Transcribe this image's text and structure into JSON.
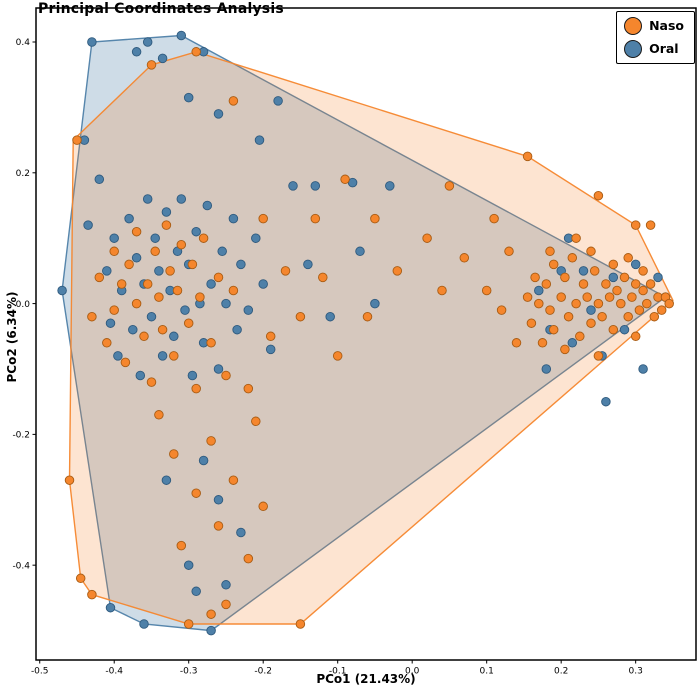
{
  "chart_data": {
    "type": "scatter",
    "title": "Principal Coordinates Analysis",
    "xlabel": "PCo1 (21.43%)",
    "ylabel": "PCo2 (6.34%)",
    "xlim": [
      -0.505,
      0.381
    ],
    "ylim": [
      -0.545,
      0.452
    ],
    "grid": false,
    "legend_position": "top-right",
    "xticks": {
      "values": [
        -0.5,
        -0.4,
        -0.3,
        -0.2,
        -0.1,
        0,
        0.1,
        0.2,
        0.3
      ],
      "labels": [
        "-0.5",
        "-0.4",
        "-0.3",
        "-0.2",
        "-0.1",
        "0.0",
        "0.1",
        "0.2",
        "0.3"
      ]
    },
    "yticks": {
      "values": [
        -0.4,
        -0.2,
        0,
        0.2,
        0.4
      ],
      "labels": [
        "-0.4",
        "-0.2",
        "0.0",
        "0.2",
        "0.4"
      ]
    },
    "point_radius": 4.3,
    "series": [
      {
        "name": "Naso",
        "color": "#f5862d",
        "edge_color": "#a85c14",
        "hull_opacity": 0.22,
        "hull": [
          [
            -0.455,
            0.25
          ],
          [
            -0.35,
            0.365
          ],
          [
            -0.29,
            0.385
          ],
          [
            0.155,
            0.225
          ],
          [
            0.3,
            0.12
          ],
          [
            0.35,
            0.005
          ],
          [
            -0.15,
            -0.49
          ],
          [
            -0.3,
            -0.49
          ],
          [
            -0.43,
            -0.445
          ],
          [
            -0.445,
            -0.42
          ],
          [
            -0.46,
            -0.27
          ]
        ],
        "points": [
          [
            0.155,
            0.01
          ],
          [
            0.16,
            -0.03
          ],
          [
            0.165,
            0.04
          ],
          [
            0.17,
            0.0
          ],
          [
            0.175,
            -0.06
          ],
          [
            0.18,
            0.03
          ],
          [
            0.185,
            -0.01
          ],
          [
            0.19,
            0.06
          ],
          [
            0.19,
            -0.04
          ],
          [
            0.2,
            0.01
          ],
          [
            0.205,
            0.04
          ],
          [
            0.21,
            -0.02
          ],
          [
            0.215,
            0.07
          ],
          [
            0.22,
            0.0
          ],
          [
            0.225,
            -0.05
          ],
          [
            0.23,
            0.03
          ],
          [
            0.235,
            0.01
          ],
          [
            0.24,
            -0.03
          ],
          [
            0.245,
            0.05
          ],
          [
            0.25,
            0.0
          ],
          [
            0.255,
            -0.02
          ],
          [
            0.26,
            0.03
          ],
          [
            0.265,
            0.01
          ],
          [
            0.27,
            -0.04
          ],
          [
            0.275,
            0.02
          ],
          [
            0.28,
            0.0
          ],
          [
            0.285,
            0.04
          ],
          [
            0.29,
            -0.02
          ],
          [
            0.295,
            0.01
          ],
          [
            0.3,
            0.03
          ],
          [
            0.305,
            -0.01
          ],
          [
            0.31,
            0.02
          ],
          [
            0.315,
            0.0
          ],
          [
            0.32,
            0.03
          ],
          [
            0.325,
            -0.02
          ],
          [
            0.33,
            0.01
          ],
          [
            0.335,
            -0.01
          ],
          [
            0.34,
            0.01
          ],
          [
            0.345,
            0.0
          ],
          [
            0.3,
            -0.05
          ],
          [
            0.27,
            0.06
          ],
          [
            0.24,
            0.08
          ],
          [
            0.205,
            -0.07
          ],
          [
            0.185,
            0.08
          ],
          [
            0.25,
            -0.08
          ],
          [
            0.22,
            0.1
          ],
          [
            0.29,
            0.07
          ],
          [
            0.31,
            0.05
          ],
          [
            0.3,
            0.12
          ],
          [
            0.32,
            0.12
          ],
          [
            0.155,
            0.225
          ],
          [
            0.25,
            0.165
          ],
          [
            0.13,
            0.08
          ],
          [
            0.12,
            -0.01
          ],
          [
            0.1,
            0.02
          ],
          [
            0.14,
            -0.06
          ],
          [
            0.11,
            0.13
          ],
          [
            -0.43,
            -0.02
          ],
          [
            -0.42,
            0.04
          ],
          [
            -0.41,
            -0.06
          ],
          [
            -0.4,
            0.08
          ],
          [
            -0.4,
            -0.01
          ],
          [
            -0.39,
            0.03
          ],
          [
            -0.385,
            -0.09
          ],
          [
            -0.38,
            0.06
          ],
          [
            -0.37,
            0.0
          ],
          [
            -0.37,
            0.11
          ],
          [
            -0.36,
            -0.05
          ],
          [
            -0.355,
            0.03
          ],
          [
            -0.35,
            -0.12
          ],
          [
            -0.345,
            0.08
          ],
          [
            -0.34,
            0.01
          ],
          [
            -0.335,
            -0.04
          ],
          [
            -0.33,
            0.12
          ],
          [
            -0.325,
            0.05
          ],
          [
            -0.32,
            -0.08
          ],
          [
            -0.315,
            0.02
          ],
          [
            -0.31,
            0.09
          ],
          [
            -0.3,
            -0.03
          ],
          [
            -0.295,
            0.06
          ],
          [
            -0.29,
            -0.13
          ],
          [
            -0.285,
            0.01
          ],
          [
            -0.28,
            0.1
          ],
          [
            -0.27,
            -0.06
          ],
          [
            -0.26,
            0.04
          ],
          [
            -0.25,
            -0.11
          ],
          [
            -0.24,
            0.02
          ],
          [
            -0.45,
            0.25
          ],
          [
            -0.35,
            0.365
          ],
          [
            -0.29,
            0.385
          ],
          [
            -0.24,
            0.31
          ],
          [
            -0.13,
            0.13
          ],
          [
            -0.2,
            0.13
          ],
          [
            -0.17,
            0.05
          ],
          [
            -0.15,
            -0.02
          ],
          [
            -0.12,
            0.04
          ],
          [
            -0.09,
            0.19
          ],
          [
            -0.05,
            0.13
          ],
          [
            -0.02,
            0.05
          ],
          [
            0.02,
            0.1
          ],
          [
            -0.19,
            -0.05
          ],
          [
            -0.22,
            -0.13
          ],
          [
            -0.1,
            -0.08
          ],
          [
            -0.06,
            -0.02
          ],
          [
            0.04,
            0.02
          ],
          [
            0.07,
            0.07
          ],
          [
            0.05,
            0.18
          ],
          [
            -0.46,
            -0.27
          ],
          [
            -0.445,
            -0.42
          ],
          [
            -0.43,
            -0.445
          ],
          [
            -0.3,
            -0.49
          ],
          [
            -0.27,
            -0.475
          ],
          [
            -0.25,
            -0.46
          ],
          [
            -0.15,
            -0.49
          ],
          [
            -0.22,
            -0.39
          ],
          [
            -0.26,
            -0.34
          ],
          [
            -0.29,
            -0.29
          ],
          [
            -0.32,
            -0.23
          ],
          [
            -0.27,
            -0.21
          ],
          [
            -0.24,
            -0.27
          ],
          [
            -0.31,
            -0.37
          ],
          [
            -0.21,
            -0.18
          ],
          [
            -0.34,
            -0.17
          ],
          [
            -0.2,
            -0.31
          ]
        ]
      },
      {
        "name": "Oral",
        "color": "#4e80a8",
        "edge_color": "#2f5a7e",
        "hull_opacity": 0.28,
        "hull": [
          [
            -0.47,
            0.02
          ],
          [
            -0.43,
            0.4
          ],
          [
            -0.31,
            0.41
          ],
          [
            0.34,
            0.01
          ],
          [
            -0.27,
            -0.5
          ],
          [
            -0.36,
            -0.49
          ],
          [
            -0.405,
            -0.465
          ]
        ],
        "points": [
          [
            -0.43,
            0.4
          ],
          [
            -0.37,
            0.385
          ],
          [
            -0.355,
            0.4
          ],
          [
            -0.335,
            0.375
          ],
          [
            -0.31,
            0.41
          ],
          [
            -0.28,
            0.385
          ],
          [
            -0.3,
            0.315
          ],
          [
            -0.26,
            0.29
          ],
          [
            -0.205,
            0.25
          ],
          [
            -0.18,
            0.31
          ],
          [
            -0.47,
            0.02
          ],
          [
            -0.44,
            0.25
          ],
          [
            -0.42,
            0.19
          ],
          [
            -0.435,
            0.12
          ],
          [
            -0.41,
            0.05
          ],
          [
            -0.405,
            -0.03
          ],
          [
            -0.4,
            0.1
          ],
          [
            -0.395,
            -0.08
          ],
          [
            -0.39,
            0.02
          ],
          [
            -0.38,
            0.13
          ],
          [
            -0.375,
            -0.04
          ],
          [
            -0.37,
            0.07
          ],
          [
            -0.365,
            -0.11
          ],
          [
            -0.36,
            0.03
          ],
          [
            -0.355,
            0.16
          ],
          [
            -0.35,
            -0.02
          ],
          [
            -0.345,
            0.1
          ],
          [
            -0.34,
            0.05
          ],
          [
            -0.335,
            -0.08
          ],
          [
            -0.33,
            0.14
          ],
          [
            -0.325,
            0.02
          ],
          [
            -0.32,
            -0.05
          ],
          [
            -0.315,
            0.08
          ],
          [
            -0.31,
            0.16
          ],
          [
            -0.305,
            -0.01
          ],
          [
            -0.3,
            0.06
          ],
          [
            -0.295,
            -0.11
          ],
          [
            -0.29,
            0.11
          ],
          [
            -0.285,
            0.0
          ],
          [
            -0.28,
            -0.06
          ],
          [
            -0.275,
            0.15
          ],
          [
            -0.27,
            0.03
          ],
          [
            -0.26,
            -0.1
          ],
          [
            -0.255,
            0.08
          ],
          [
            -0.25,
            0.0
          ],
          [
            -0.24,
            0.13
          ],
          [
            -0.235,
            -0.04
          ],
          [
            -0.23,
            0.06
          ],
          [
            -0.22,
            -0.01
          ],
          [
            -0.21,
            0.1
          ],
          [
            -0.2,
            0.03
          ],
          [
            -0.19,
            -0.07
          ],
          [
            -0.16,
            0.18
          ],
          [
            -0.13,
            0.18
          ],
          [
            -0.08,
            0.185
          ],
          [
            -0.03,
            0.18
          ],
          [
            -0.14,
            0.06
          ],
          [
            -0.11,
            -0.02
          ],
          [
            -0.07,
            0.08
          ],
          [
            -0.05,
            0.0
          ],
          [
            0.17,
            0.02
          ],
          [
            0.185,
            -0.04
          ],
          [
            0.2,
            0.05
          ],
          [
            0.215,
            -0.06
          ],
          [
            0.23,
            0.05
          ],
          [
            0.24,
            -0.01
          ],
          [
            0.255,
            -0.08
          ],
          [
            0.27,
            0.04
          ],
          [
            0.285,
            -0.04
          ],
          [
            0.3,
            0.06
          ],
          [
            0.31,
            -0.1
          ],
          [
            0.33,
            0.04
          ],
          [
            0.34,
            0.01
          ],
          [
            0.21,
            0.1
          ],
          [
            0.18,
            -0.1
          ],
          [
            0.26,
            -0.15
          ],
          [
            -0.405,
            -0.465
          ],
          [
            -0.36,
            -0.49
          ],
          [
            -0.27,
            -0.5
          ],
          [
            -0.29,
            -0.44
          ],
          [
            -0.25,
            -0.43
          ],
          [
            -0.3,
            -0.4
          ],
          [
            -0.26,
            -0.3
          ],
          [
            -0.28,
            -0.24
          ],
          [
            -0.23,
            -0.35
          ],
          [
            -0.33,
            -0.27
          ]
        ]
      }
    ]
  }
}
